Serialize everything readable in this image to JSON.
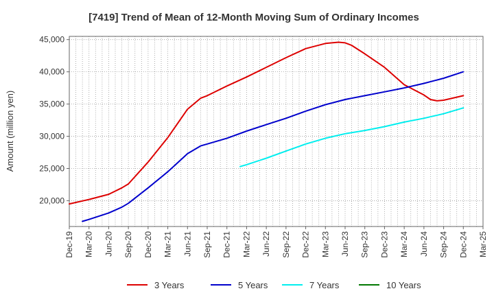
{
  "chart_data": {
    "type": "line",
    "title": "[7419]  Trend of Mean of 12-Month Moving Sum of Ordinary Incomes",
    "xlabel": "",
    "ylabel": "Amount (million yen)",
    "ylim": [
      16000,
      45500
    ],
    "y_ticks": [
      20000,
      25000,
      30000,
      35000,
      40000,
      45000
    ],
    "y_tick_labels": [
      "20,000",
      "25,000",
      "30,000",
      "35,000",
      "40,000",
      "45,000"
    ],
    "x_tick_labels": [
      "Dec-19",
      "Mar-20",
      "Jun-20",
      "Sep-20",
      "Dec-20",
      "Mar-21",
      "Jun-21",
      "Sep-21",
      "Dec-21",
      "Mar-22",
      "Jun-22",
      "Sep-22",
      "Dec-22",
      "Mar-23",
      "Jun-23",
      "Sep-23",
      "Dec-23",
      "Mar-24",
      "Jun-24",
      "Sep-24",
      "Dec-24",
      "Mar-25"
    ],
    "grid": true,
    "legend_position": "bottom",
    "series": [
      {
        "name": "3 Years",
        "color": "#dd0000",
        "points": [
          [
            "Dec-19",
            19500
          ],
          [
            "Mar-20",
            20200
          ],
          [
            "Jun-20",
            21000
          ],
          [
            "Aug-20",
            22000
          ],
          [
            "Sep-20",
            22600
          ],
          [
            "Dec-20",
            26000
          ],
          [
            "Mar-21",
            29800
          ],
          [
            "Jun-21",
            34200
          ],
          [
            "Aug-21",
            35900
          ],
          [
            "Sep-21",
            36300
          ],
          [
            "Dec-21",
            37800
          ],
          [
            "Mar-22",
            39200
          ],
          [
            "Jun-22",
            40700
          ],
          [
            "Sep-22",
            42200
          ],
          [
            "Dec-22",
            43600
          ],
          [
            "Mar-23",
            44400
          ],
          [
            "May-23",
            44600
          ],
          [
            "Jun-23",
            44500
          ],
          [
            "Jul-23",
            44100
          ],
          [
            "Sep-23",
            42800
          ],
          [
            "Dec-23",
            40700
          ],
          [
            "Mar-24",
            38000
          ],
          [
            "Jun-24",
            36400
          ],
          [
            "Jul-24",
            35700
          ],
          [
            "Aug-24",
            35500
          ],
          [
            "Sep-24",
            35600
          ],
          [
            "Dec-24",
            36300
          ]
        ]
      },
      {
        "name": "5 Years",
        "color": "#0000cc",
        "points": [
          [
            "Feb-20",
            16800
          ],
          [
            "Mar-20",
            17100
          ],
          [
            "Jun-20",
            18100
          ],
          [
            "Aug-20",
            19000
          ],
          [
            "Sep-20",
            19600
          ],
          [
            "Dec-20",
            22000
          ],
          [
            "Mar-21",
            24500
          ],
          [
            "Jun-21",
            27300
          ],
          [
            "Aug-21",
            28500
          ],
          [
            "Sep-21",
            28800
          ],
          [
            "Dec-21",
            29700
          ],
          [
            "Mar-22",
            30800
          ],
          [
            "Jun-22",
            31800
          ],
          [
            "Sep-22",
            32800
          ],
          [
            "Dec-22",
            33900
          ],
          [
            "Mar-23",
            34900
          ],
          [
            "Jun-23",
            35700
          ],
          [
            "Sep-23",
            36300
          ],
          [
            "Dec-23",
            36900
          ],
          [
            "Mar-24",
            37500
          ],
          [
            "Jun-24",
            38200
          ],
          [
            "Sep-24",
            39000
          ],
          [
            "Dec-24",
            40000
          ]
        ]
      },
      {
        "name": "7 Years",
        "color": "#00eeee",
        "points": [
          [
            "Feb-22",
            25300
          ],
          [
            "Mar-22",
            25600
          ],
          [
            "Jun-22",
            26600
          ],
          [
            "Sep-22",
            27700
          ],
          [
            "Dec-22",
            28800
          ],
          [
            "Mar-23",
            29700
          ],
          [
            "Jun-23",
            30400
          ],
          [
            "Sep-23",
            30900
          ],
          [
            "Dec-23",
            31500
          ],
          [
            "Mar-24",
            32200
          ],
          [
            "Jun-24",
            32800
          ],
          [
            "Sep-24",
            33500
          ],
          [
            "Dec-24",
            34400
          ]
        ]
      },
      {
        "name": "10 Years",
        "color": "#007700",
        "points": []
      }
    ]
  }
}
